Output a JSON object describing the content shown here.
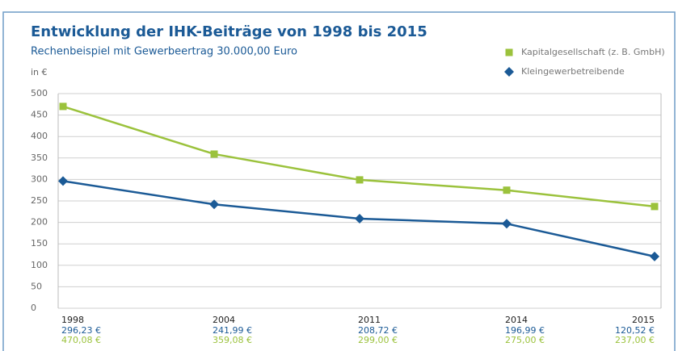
{
  "chart_data": {
    "type": "line",
    "title": "Entwicklung der IHK-Beiträge von 1998 bis 2015",
    "subtitle": "Rechenbeispiel mit Gewerbeertrag 30.000,00 Euro",
    "ylabel": "in €",
    "categories": [
      "1998",
      "2004",
      "2011",
      "2014",
      "2015"
    ],
    "series": [
      {
        "name": "Kapitalgesellschaft (z. B. GmbH)",
        "color": "#9bc23c",
        "marker": "square",
        "values": [
          470.08,
          359.08,
          299.0,
          275.0,
          237.0
        ],
        "value_labels": [
          "470,08 €",
          "359,08 €",
          "299,00 €",
          "275,00 €",
          "237,00 €"
        ]
      },
      {
        "name": "Kleingewerbetreibende",
        "color": "#1b5a96",
        "marker": "diamond",
        "values": [
          296.23,
          241.99,
          208.72,
          196.99,
          120.52
        ],
        "value_labels": [
          "296,23 €",
          "241,99 €",
          "208,72 €",
          "196,99 €",
          "120,52 €"
        ]
      }
    ],
    "ylim": [
      0,
      500
    ],
    "yticks": [
      0,
      50,
      100,
      150,
      200,
      250,
      300,
      350,
      400,
      450,
      500
    ],
    "grid": true
  }
}
